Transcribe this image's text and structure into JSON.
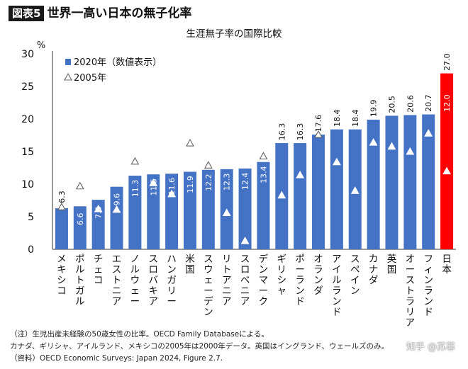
{
  "header": {
    "tag": "図表5",
    "headline": "世界一高い日本の無子化率"
  },
  "chart_data": {
    "type": "bar",
    "title": "生涯無子率の国際比較",
    "ylabel": "%",
    "ylim": [
      0,
      30
    ],
    "yticks": [
      "0",
      "5",
      "10",
      "15",
      "20",
      "25",
      "30"
    ],
    "grid": false,
    "legend_position": "top-left",
    "categories": [
      "メキシコ",
      "ポルトガル",
      "チェコ",
      "エストニア",
      "ノルウェー",
      "スロバキア",
      "ハンガリー",
      "米国",
      "スウェーデン",
      "リトアニア",
      "スロベニア",
      "デンマーク",
      "ギリシャ",
      "ポーランド",
      "オランダ",
      "アイルランド",
      "スペイン",
      "カナダ",
      "英国",
      "オーストラリア",
      "フィンランド",
      "日本"
    ],
    "series": [
      {
        "name": "2020年（数値表示）",
        "marker": "bar",
        "values": [
          6.3,
          6.6,
          7.6,
          9.6,
          11.3,
          11.5,
          11.6,
          11.9,
          12.2,
          12.3,
          12.4,
          13.4,
          16.3,
          16.3,
          17.6,
          18.4,
          18.4,
          19.9,
          20.5,
          20.6,
          20.7,
          27.0
        ],
        "labels": [
          "6.3",
          "6.6",
          "7.6",
          "9.6",
          "11.3",
          "11.5",
          "11.6",
          "11.9",
          "12.2",
          "12.3",
          "12.4",
          "13.4",
          "16.3",
          "16.3",
          "17.6",
          "18.4",
          "18.4",
          "19.9",
          "20.5",
          "20.6",
          "20.7",
          "27.0"
        ]
      },
      {
        "name": "2005年",
        "marker": "triangle",
        "values": [
          6.5,
          9.7,
          6.2,
          6.1,
          13.5,
          10.2,
          8.5,
          16.3,
          12.9,
          5.6,
          1.3,
          14.3,
          8.3,
          11.4,
          17.6,
          13.4,
          9.0,
          16.4,
          15.8,
          15.0,
          17.8,
          12.0
        ]
      }
    ],
    "colors": {
      "bar": "#4472c4",
      "highlight_bar": "#ff0000",
      "triangle_stroke": "#666666",
      "triangle_fill_inside": "#ffffff"
    },
    "highlight_category": "日本"
  },
  "notes": [
    "（注）生児出産未経験の50歳女性の比率。OECD Family Databaseによる。",
    "カナダ、ギリシャ、アイルランド、メキシコの2005年は2000年データ。英国はイングランド、ウェールズのみ。",
    "（資料）OECD Economic Surveys: Japan 2024, Figure 2.7."
  ],
  "watermark": "知乎 @苏菲"
}
